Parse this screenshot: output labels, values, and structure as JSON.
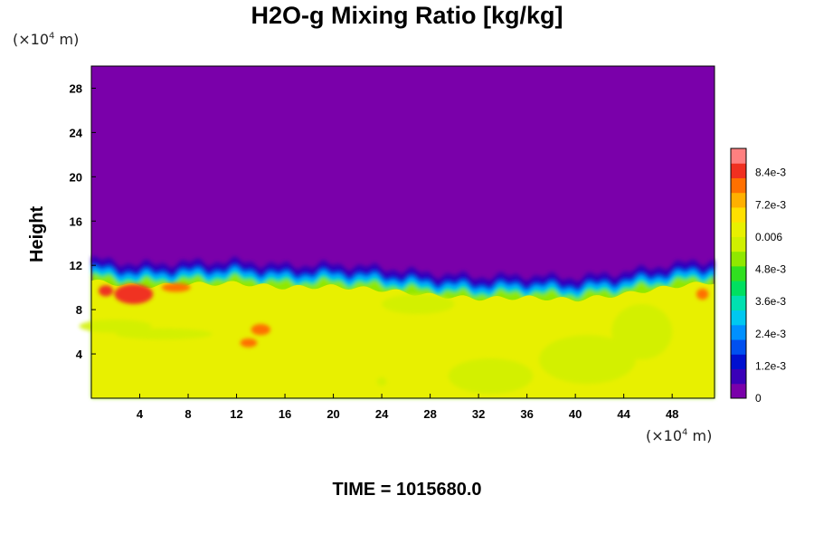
{
  "chart_data": {
    "type": "heatmap",
    "title": "H2O-g Mixing Ratio [kg/kg]",
    "xlabel": "",
    "ylabel": "Height",
    "x_unit": "(×10",
    "x_unit_exp": "4",
    "x_unit_tail": " m)",
    "y_unit": "(×10",
    "y_unit_exp": "4",
    "y_unit_tail": " m)",
    "xlim": [
      0,
      51.5
    ],
    "ylim": [
      0,
      30
    ],
    "x_ticks": [
      4,
      8,
      12,
      16,
      20,
      24,
      28,
      32,
      36,
      40,
      44,
      48
    ],
    "y_ticks": [
      4,
      8,
      12,
      16,
      20,
      24,
      28
    ],
    "colorbar": {
      "range": [
        0,
        0.0093
      ],
      "ticks": [
        {
          "value": 0,
          "label": "0"
        },
        {
          "value": 0.0012,
          "label": "1.2e-3"
        },
        {
          "value": 0.0024,
          "label": "2.4e-3"
        },
        {
          "value": 0.0036,
          "label": "3.6e-3"
        },
        {
          "value": 0.0048,
          "label": "4.8e-3"
        },
        {
          "value": 0.006,
          "label": "0.006"
        },
        {
          "value": 0.0072,
          "label": "7.2e-3"
        },
        {
          "value": 0.0084,
          "label": "8.4e-3"
        }
      ],
      "colors": [
        "#7a00aa",
        "#3a00b8",
        "#0010d0",
        "#0050f0",
        "#0090ff",
        "#00c8f0",
        "#00e0b0",
        "#00e060",
        "#30e020",
        "#90e800",
        "#d0f000",
        "#e8f000",
        "#ffe000",
        "#ffb000",
        "#ff7000",
        "#f03020",
        "#ff8080"
      ]
    },
    "moist_top_profile": [
      {
        "x": 0,
        "y": 12.6
      },
      {
        "x": 4,
        "y": 12.1
      },
      {
        "x": 8,
        "y": 12.3
      },
      {
        "x": 12,
        "y": 12.4
      },
      {
        "x": 16,
        "y": 12.0
      },
      {
        "x": 20,
        "y": 12.1
      },
      {
        "x": 24,
        "y": 11.8
      },
      {
        "x": 28,
        "y": 11.3
      },
      {
        "x": 32,
        "y": 11.0
      },
      {
        "x": 36,
        "y": 11.1
      },
      {
        "x": 40,
        "y": 10.9
      },
      {
        "x": 44,
        "y": 11.4
      },
      {
        "x": 48,
        "y": 12.1
      },
      {
        "x": 51.5,
        "y": 12.5
      }
    ],
    "field_levels": {
      "upper": 0,
      "lower_bulk": 0.0062,
      "lower_patch": 0.0058,
      "warm_patch": 0.0078,
      "max_patch": 0.0086
    }
  },
  "footer": {
    "time": "TIME = 1015680.0"
  }
}
